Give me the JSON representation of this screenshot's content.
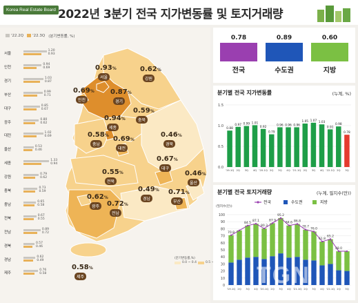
{
  "header": {
    "logo": "Korea Real Estate Board",
    "title": "2022년 3분기 전국 지가변동률 및 토지거래량"
  },
  "legend_top": {
    "prev": "'22.2Q",
    "curr": "'22.3Q",
    "unit": "(분기변동률, %)"
  },
  "regions": [
    {
      "name": "서울",
      "q2": 1.2,
      "q3": 0.93
    },
    {
      "name": "인천",
      "q2": 0.94,
      "q3": 0.69
    },
    {
      "name": "경기",
      "q2": 1.03,
      "q3": 0.87
    },
    {
      "name": "부산",
      "q2": 0.99,
      "q3": 0.71
    },
    {
      "name": "대구",
      "q2": 0.85,
      "q3": 0.67
    },
    {
      "name": "광주",
      "q2": 0.8,
      "q3": 0.62
    },
    {
      "name": "대전",
      "q2": 1.02,
      "q3": 0.69
    },
    {
      "name": "울산",
      "q2": 0.53,
      "q3": 0.46
    },
    {
      "name": "세종",
      "q2": 1.33,
      "q3": 0.94
    },
    {
      "name": "강원",
      "q2": 0.79,
      "q3": 0.62
    },
    {
      "name": "충북",
      "q2": 0.73,
      "q3": 0.59
    },
    {
      "name": "충남",
      "q2": 0.65,
      "q3": 0.58
    },
    {
      "name": "전북",
      "q2": 0.67,
      "q3": 0.55
    },
    {
      "name": "전남",
      "q2": 0.89,
      "q3": 0.72
    },
    {
      "name": "경북",
      "q2": 0.57,
      "q3": 0.46
    },
    {
      "name": "경남",
      "q2": 0.62,
      "q3": 0.49
    },
    {
      "name": "제주",
      "q2": 0.76,
      "q3": 0.58
    }
  ],
  "map_labels": [
    {
      "name": "서울",
      "value": "0.93",
      "unit": "%"
    },
    {
      "name": "인천",
      "value": "0.69",
      "unit": "%"
    },
    {
      "name": "경기",
      "value": "0.87",
      "unit": "%"
    },
    {
      "name": "강원",
      "value": "0.62",
      "unit": "%"
    },
    {
      "name": "세종",
      "value": "0.94",
      "unit": "%"
    },
    {
      "name": "충북",
      "value": "0.59",
      "unit": "%"
    },
    {
      "name": "충남",
      "value": "0.58",
      "unit": "%"
    },
    {
      "name": "대전",
      "value": "0.69",
      "unit": "%"
    },
    {
      "name": "경북",
      "value": "0.46",
      "unit": "%"
    },
    {
      "name": "전북",
      "value": "0.55",
      "unit": "%"
    },
    {
      "name": "대구",
      "value": "0.67",
      "unit": "%"
    },
    {
      "name": "울산",
      "value": "0.46",
      "unit": "%"
    },
    {
      "name": "광주",
      "value": "0.62",
      "unit": "%"
    },
    {
      "name": "전남",
      "value": "0.72",
      "unit": "%"
    },
    {
      "name": "경남",
      "value": "0.49",
      "unit": "%"
    },
    {
      "name": "부산",
      "value": "0.71",
      "unit": "%"
    },
    {
      "name": "제주",
      "value": "0.58",
      "unit": "%"
    }
  ],
  "scale": {
    "title": "(분기변동률,%)",
    "items": [
      {
        "label": "0.0 ~ 0.4",
        "color": "#fbe9c4"
      },
      {
        "label": "0.5 ~ 0.6",
        "color": "#f7d28c"
      },
      {
        "label": "0.7 ~ 0.8",
        "color": "#eeb456"
      },
      {
        "label": "0.9 ~ 1.0",
        "color": "#de8e2c"
      },
      {
        "label": "1.1 ~ 2.0",
        "color": "#b96a1c"
      }
    ]
  },
  "summary_boxes": [
    {
      "name": "전국",
      "value": "0.78",
      "color": "#9a3fb0"
    },
    {
      "name": "수도권",
      "value": "0.89",
      "color": "#1f56b8"
    },
    {
      "name": "지방",
      "value": "0.60",
      "color": "#7bc043"
    }
  ],
  "quarterly_panel": {
    "title": "분기별 전국 지가변동률",
    "unit": "(누계, %)"
  },
  "volume_panel": {
    "title": "분기별 전국 토지거래량",
    "unit": "(누계, 필지수(만))",
    "yunit": "(필지수(만))"
  },
  "watermark": "TGN",
  "chart_data": [
    {
      "type": "bar",
      "title": "분기별 전국 지가변동률",
      "categories": [
        "'19.1Q",
        "2Q",
        "3Q",
        "4Q",
        "'20.1Q",
        "2Q",
        "3Q",
        "4Q",
        "'21.1Q",
        "2Q",
        "3Q",
        "4Q",
        "'22.1Q",
        "2Q",
        "3Q"
      ],
      "values": [
        0.88,
        0.97,
        0.99,
        1.01,
        0.92,
        0.79,
        0.96,
        0.96,
        0.96,
        1.05,
        1.07,
        1.03,
        0.91,
        0.98,
        0.78
      ],
      "ylim": [
        0,
        1.5
      ],
      "yticks": [
        0.0,
        0.5,
        1.0,
        1.5
      ],
      "bar_color": "#1e9e48",
      "last_bar_color": "#e53b2f"
    },
    {
      "type": "bar+line",
      "title": "분기별 전국 토지거래량",
      "categories": [
        "'19.1Q",
        "2Q",
        "3Q",
        "4Q",
        "'20.1Q",
        "2Q",
        "3Q",
        "4Q",
        "'21.1Q",
        "2Q",
        "3Q",
        "4Q",
        "'22.1Q",
        "2Q",
        "3Q"
      ],
      "series": [
        {
          "name": "전국",
          "type": "line",
          "color": "#9a3fb0",
          "values": [
            70.8,
            77.6,
            84.5,
            87.1,
            80.3,
            87.9,
            95.2,
            84.6,
            86.8,
            78.7,
            76.0,
            61.8,
            65.2,
            48.0,
            48.0
          ]
        },
        {
          "name": "수도권",
          "type": "bar",
          "color": "#1f56b8",
          "values": [
            32,
            36,
            39,
            40,
            37,
            41,
            45,
            39,
            40,
            36,
            35,
            28,
            30,
            21,
            20
          ]
        },
        {
          "name": "지방",
          "type": "bar",
          "color": "#7bc043",
          "values": [
            38.8,
            41.6,
            45.5,
            47.1,
            43.3,
            46.9,
            50.2,
            45.6,
            46.8,
            42.7,
            41.0,
            33.8,
            35.2,
            27.0,
            28.0
          ]
        }
      ],
      "value_labels": [
        "70.8",
        "84.5",
        "87.1",
        "80.3",
        "87.9",
        "95.2",
        "84.6",
        "86.8",
        "78.7",
        "76.0",
        "61.8",
        "65.2",
        "48.0"
      ],
      "ylim": [
        0,
        100
      ],
      "yticks": [
        0,
        10,
        20,
        30,
        40,
        50,
        60,
        70,
        80,
        90,
        100
      ]
    }
  ]
}
